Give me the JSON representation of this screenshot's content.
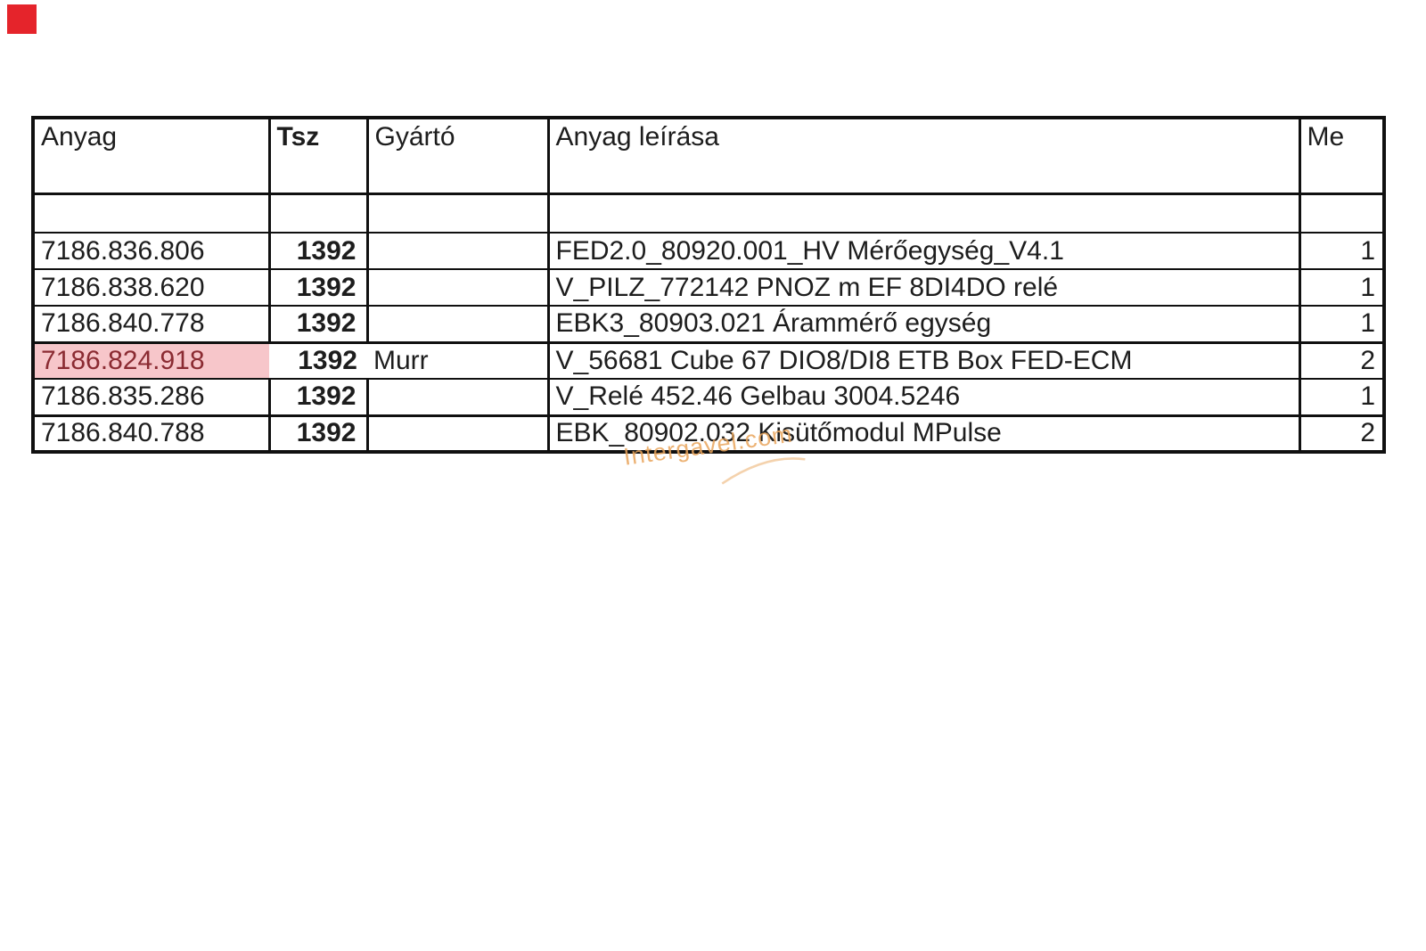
{
  "page": {
    "background": "#ffffff"
  },
  "marker": {
    "color": "#e5242b"
  },
  "watermark": {
    "text": "Intergavel.com",
    "color": "#e9a55c"
  },
  "table": {
    "headers": [
      "Anyag",
      "Tsz",
      "Gyártó",
      "Anyag leírása",
      "Me"
    ],
    "highlight_style": {
      "background": "#f7c6ca",
      "text_color": "#8b2b32"
    },
    "rows": [
      {
        "empty": true,
        "anyag": "",
        "tsz": "",
        "gyarto": "",
        "leiras": "",
        "me": ""
      },
      {
        "anyag": "7186.836.806",
        "tsz": "1392",
        "gyarto": "",
        "leiras": "FED2.0_80920.001_HV Mérőegység_V4.1",
        "me": "1"
      },
      {
        "anyag": "7186.838.620",
        "tsz": "1392",
        "gyarto": "",
        "leiras": "V_PILZ_772142 PNOZ m EF 8DI4DO relé",
        "me": "1"
      },
      {
        "anyag": "7186.840.778",
        "tsz": "1392",
        "gyarto": "",
        "leiras": "EBK3_80903.021 Árammérő egység",
        "me": "1",
        "thick_bottom": true
      },
      {
        "anyag": "7186.824.918",
        "tsz": "1392",
        "gyarto": "Murr",
        "leiras": "V_56681 Cube 67 DIO8/DI8 ETB Box FED-ECM",
        "me": "2",
        "highlight": true
      },
      {
        "anyag": "7186.835.286",
        "tsz": "1392",
        "gyarto": "",
        "leiras": "V_Relé 452.46 Gelbau 3004.5246",
        "me": "1",
        "thick_bottom": true
      },
      {
        "anyag": "7186.840.788",
        "tsz": "1392",
        "gyarto": "",
        "leiras": "EBK_80902.032 Kisütőmodul MPulse",
        "me": "2"
      }
    ]
  }
}
